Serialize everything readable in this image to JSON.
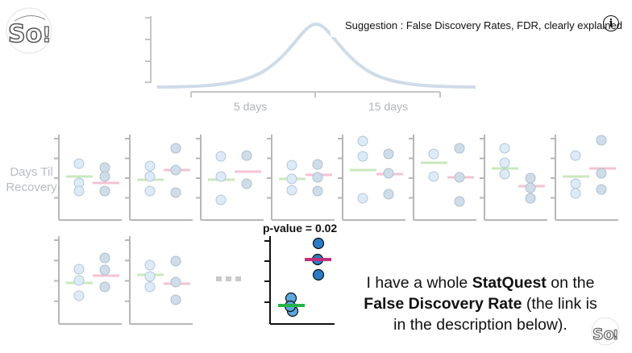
{
  "suggestion": {
    "text": "Suggestion : False Discovery Rates, FDR, clearly explained",
    "info_glyph": "i"
  },
  "axis": {
    "ticks": [
      "5 days",
      "15 days"
    ]
  },
  "y_label": {
    "line1": "Days Til",
    "line2": "Recovery"
  },
  "p_value": "p-value = 0.02",
  "ellipsis": "...",
  "caption": {
    "l1a": "I have a whole ",
    "l1b": "StatQuest",
    "l1c": " on the",
    "l2a": "False Discovery Rate",
    "l2b": " (the link is",
    "l3": "in the description below)."
  },
  "colors": {
    "curve": "#cfdbe8",
    "green": "#c8e8bd",
    "pink": "#f4c2d3",
    "dot": "#cfdde9",
    "dot_light": "#dcebf7",
    "axis_light": "#b7b7b7",
    "dark_blue": "#2a7dc4",
    "dark_green": "#27b34a",
    "dark_pink": "#c0307a"
  },
  "icons": {
    "logo": "statquest-logo-icon",
    "info": "info-icon"
  }
}
